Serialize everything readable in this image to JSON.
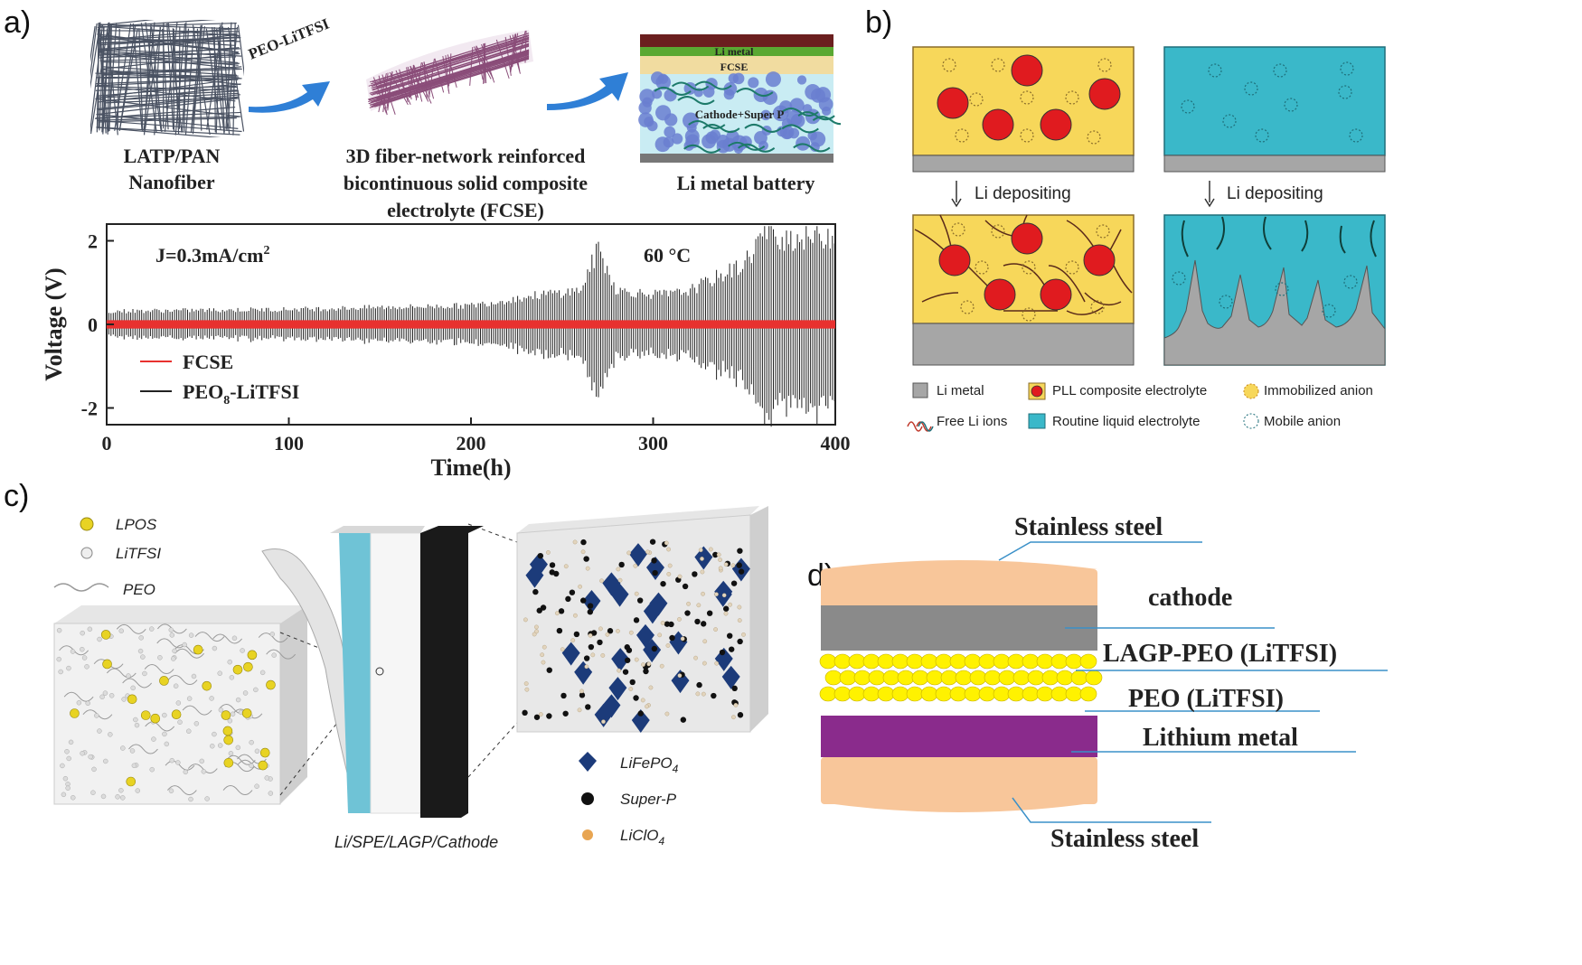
{
  "panel_a": {
    "label": "a)",
    "arrow_label": "PEO-LiTFSI",
    "nanofiber_caption": [
      "LATP/PAN",
      "Nanofiber"
    ],
    "fcse_caption": [
      "3D fiber-network reinforced",
      "bicontinuous solid composite",
      "electrolyte (FCSE)"
    ],
    "battery_caption": "Li metal battery",
    "battery_layers": [
      "Li metal",
      "FCSE",
      "Cathode+Super P"
    ],
    "colors": {
      "fcse": "#e8312f",
      "peo": "#222222",
      "nanofiber": "#4a5262",
      "fcse_mesh": "#8a4d79",
      "battery_blue": "#6a7fd0"
    }
  },
  "chart_data": {
    "type": "line",
    "title": "",
    "annotations": [
      "J=0.3mA/cm",
      "2",
      "60 °C"
    ],
    "xlabel": "Time(h)",
    "ylabel": "Voltage (V)",
    "xlim": [
      0,
      400
    ],
    "ylim": [
      -2.4,
      2.4
    ],
    "xticks": [
      0,
      100,
      200,
      300,
      400
    ],
    "yticks": [
      -2,
      0,
      2
    ],
    "legend": {
      "placement": "bottom-left"
    },
    "series": [
      {
        "name": "FCSE",
        "amplitude_v": 0.1
      },
      {
        "name": "PEO",
        "name_sub": "8",
        "name_suffix": "-LiTFSI",
        "envelope": {
          "x": [
            0,
            100,
            200,
            240,
            260,
            270,
            280,
            300,
            310,
            320,
            350,
            360,
            380,
            400
          ],
          "y": [
            0.35,
            0.4,
            0.5,
            0.8,
            0.9,
            2.0,
            0.9,
            0.8,
            0.8,
            0.9,
            1.6,
            2.4,
            2.3,
            2.4
          ]
        }
      }
    ]
  },
  "panel_b": {
    "label": "b)",
    "step_label_left": "Li depositing",
    "step_label_right": "Li depositing",
    "legend": [
      {
        "label": "Li metal",
        "icon": "gray-square"
      },
      {
        "label": "PLL composite electrolyte",
        "icon": "red-particle"
      },
      {
        "label": "Immobilized anion",
        "icon": "yellow-dashed-circle"
      },
      {
        "label": "Free Li ions",
        "icon": "wavy-lines"
      },
      {
        "label": "Routine liquid electrolyte",
        "icon": "cyan-square"
      },
      {
        "label": "Mobile anion",
        "icon": "dashed-circle"
      }
    ],
    "colors": {
      "yellow": "#f7d75a",
      "cyan": "#3ab8c9",
      "red": "#e01b1f",
      "gray": "#a6a6a6"
    }
  },
  "panel_c": {
    "label": "c)",
    "legend_left": [
      "LPOS",
      "LiTFSI",
      "PEO"
    ],
    "legend_right": [
      "LiFePO",
      "Super-P",
      "LiClO"
    ],
    "legend_right_sub": [
      "4",
      "",
      "4"
    ],
    "caption": "Li/SPE/LAGP/Cathode",
    "colors": {
      "lpos": "#e8d323",
      "lifepo4": "#1c3b7a",
      "superp": "#111111",
      "liclo4": "#e8a552"
    }
  },
  "panel_d": {
    "label": "d)",
    "layers": [
      "Stainless steel",
      "cathode",
      "LAGP-PEO (LiTFSI)",
      "PEO (LiTFSI)",
      "Lithium metal",
      "Stainless steel"
    ],
    "colors": {
      "steel": "#f8c69a",
      "cathode": "#8a8a8a",
      "lagp": "#fff200",
      "lithium": "#8a2b8c",
      "leader": "#3a90c8"
    }
  }
}
